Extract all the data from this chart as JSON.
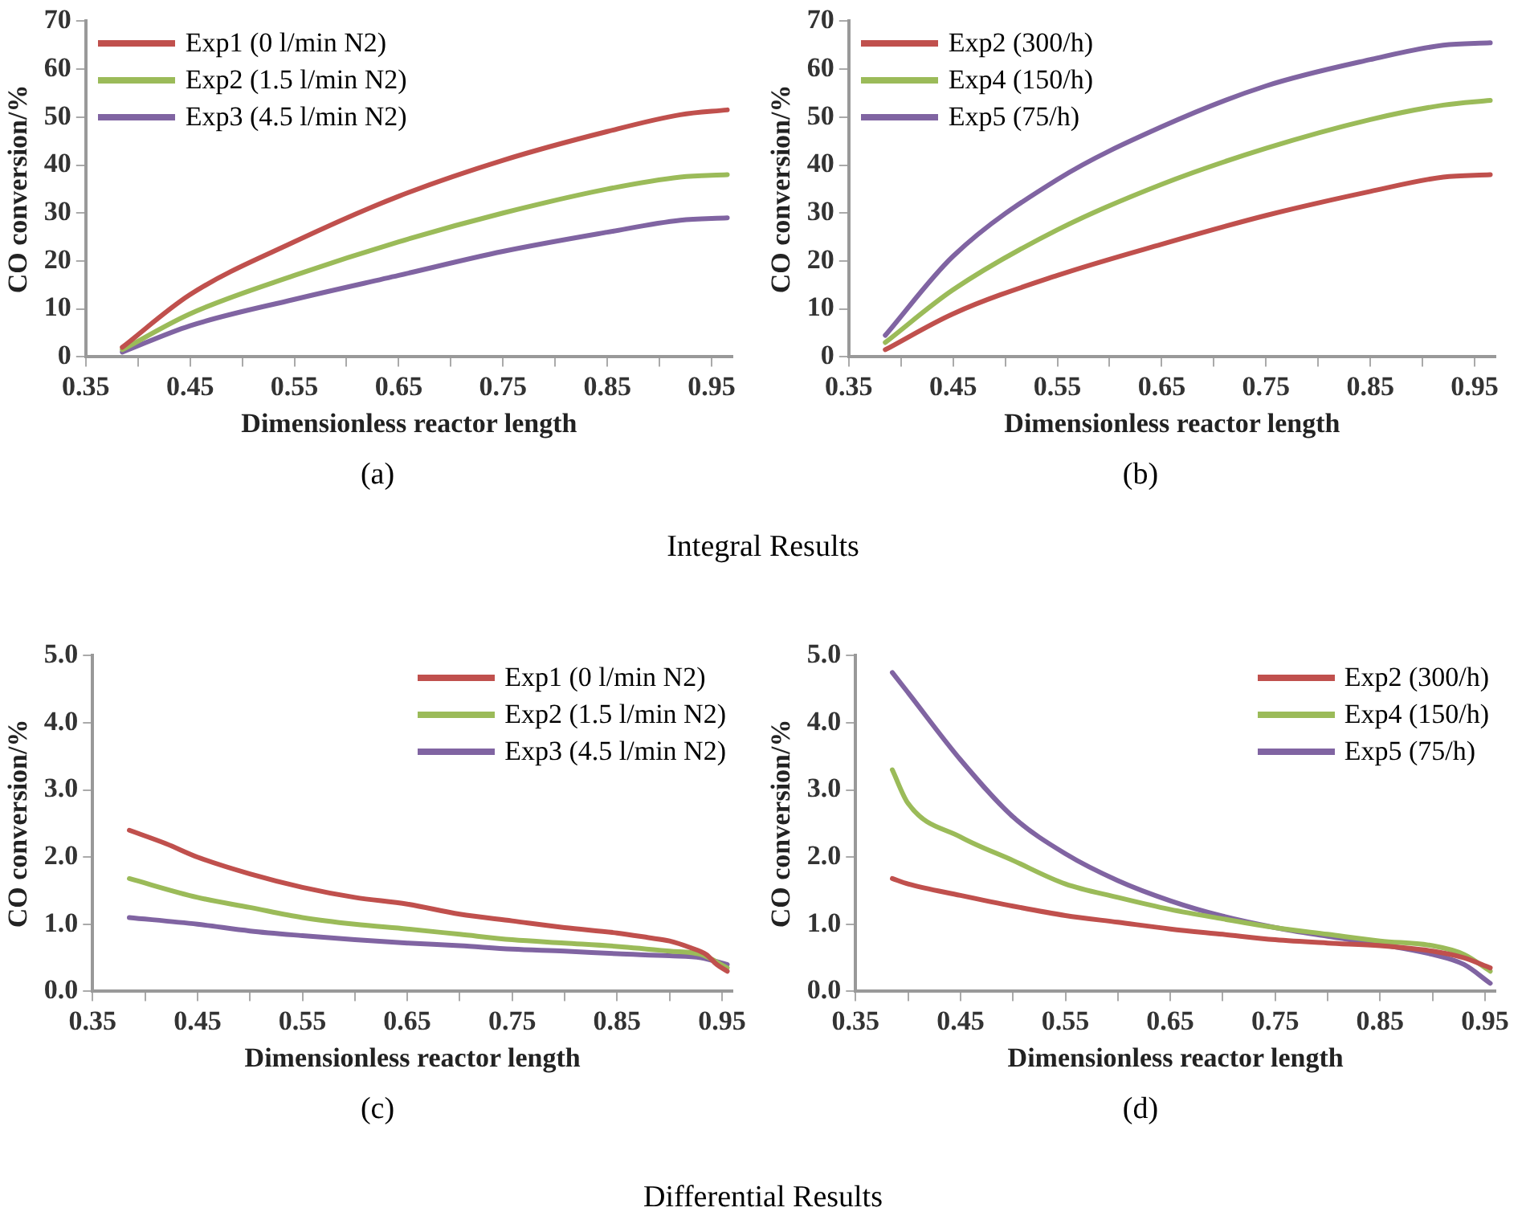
{
  "chart_data": [
    {
      "type": "line",
      "xlabel": "Dimensionless reactor length",
      "ylabel": "CO conversion/%",
      "annotations": [
        "(a)",
        "Integral Results"
      ],
      "legend": "top left",
      "grid": false,
      "marker": "none",
      "line_style": "solid",
      "xlim": [
        0.35,
        0.97
      ],
      "xticks": [
        {
          "value": 0.35,
          "label": "0.35"
        },
        {
          "value": 0.4,
          "label": null
        },
        {
          "value": 0.45,
          "label": "0.45"
        },
        {
          "value": 0.5,
          "label": null
        },
        {
          "value": 0.55,
          "label": "0.55"
        },
        {
          "value": 0.6,
          "label": null
        },
        {
          "value": 0.65,
          "label": "0.65"
        },
        {
          "value": 0.7,
          "label": null
        },
        {
          "value": 0.75,
          "label": "0.75"
        },
        {
          "value": 0.8,
          "label": null
        },
        {
          "value": 0.85,
          "label": "0.85"
        },
        {
          "value": 0.9,
          "label": null
        },
        {
          "value": 0.95,
          "label": "0.95"
        }
      ],
      "ylim": [
        0,
        70
      ],
      "yticks": [
        0,
        10,
        20,
        30,
        40,
        50,
        60,
        70
      ],
      "x": [
        0.385,
        0.45,
        0.55,
        0.65,
        0.75,
        0.85,
        0.92,
        0.965
      ],
      "series": [
        {
          "name": "Exp1 (0 l/min N2)",
          "color": "#c0504d",
          "values": [
            2,
            13,
            24,
            33.5,
            41,
            47,
            50.5,
            51.5
          ]
        },
        {
          "name": "Exp2 (1.5 l/min N2)",
          "color": "#9bbb59",
          "values": [
            1.5,
            9,
            17,
            24,
            30,
            35,
            37.5,
            38
          ]
        },
        {
          "name": "Exp3 (4.5 l/min N2)",
          "color": "#8064a2",
          "values": [
            1,
            6.5,
            12,
            17,
            22,
            26,
            28.5,
            29
          ]
        }
      ]
    },
    {
      "type": "line",
      "xlabel": "Dimensionless reactor length",
      "ylabel": "CO conversion/%",
      "annotations": [
        "(b)"
      ],
      "legend": "top left",
      "grid": false,
      "marker": "none",
      "line_style": "solid",
      "xlim": [
        0.35,
        0.97
      ],
      "xticks": [
        {
          "value": 0.35,
          "label": "0.35"
        },
        {
          "value": 0.4,
          "label": null
        },
        {
          "value": 0.45,
          "label": "0.45"
        },
        {
          "value": 0.5,
          "label": null
        },
        {
          "value": 0.55,
          "label": "0.55"
        },
        {
          "value": 0.6,
          "label": null
        },
        {
          "value": 0.65,
          "label": "0.65"
        },
        {
          "value": 0.7,
          "label": null
        },
        {
          "value": 0.75,
          "label": "0.75"
        },
        {
          "value": 0.8,
          "label": null
        },
        {
          "value": 0.85,
          "label": "0.85"
        },
        {
          "value": 0.9,
          "label": null
        },
        {
          "value": 0.95,
          "label": "0.95"
        }
      ],
      "ylim": [
        0,
        70
      ],
      "yticks": [
        0,
        10,
        20,
        30,
        40,
        50,
        60,
        70
      ],
      "x": [
        0.385,
        0.45,
        0.55,
        0.65,
        0.75,
        0.85,
        0.92,
        0.965
      ],
      "series": [
        {
          "name": "Exp2 (300/h)",
          "color": "#c0504d",
          "values": [
            1.5,
            9,
            17,
            23.5,
            29.5,
            34.5,
            37.5,
            38
          ]
        },
        {
          "name": "Exp4 (150/h)",
          "color": "#9bbb59",
          "values": [
            3,
            14,
            26.5,
            36,
            43.5,
            49.5,
            52.5,
            53.5
          ]
        },
        {
          "name": "Exp5 (75/h)",
          "color": "#8064a2",
          "values": [
            4.5,
            21,
            37,
            48,
            56.5,
            62,
            65,
            65.5
          ]
        }
      ]
    },
    {
      "type": "line",
      "xlabel": "Dimensionless reactor length",
      "ylabel": "CO conversion/%",
      "annotations": [
        "(c)",
        "Differential Results"
      ],
      "legend": "top right",
      "grid": false,
      "marker": "none",
      "line_style": "solid",
      "xlim": [
        0.35,
        0.96
      ],
      "xticks": [
        {
          "value": 0.35,
          "label": "0.35"
        },
        {
          "value": 0.4,
          "label": null
        },
        {
          "value": 0.45,
          "label": "0.45"
        },
        {
          "value": 0.5,
          "label": null
        },
        {
          "value": 0.55,
          "label": "0.55"
        },
        {
          "value": 0.6,
          "label": null
        },
        {
          "value": 0.65,
          "label": "0.65"
        },
        {
          "value": 0.7,
          "label": null
        },
        {
          "value": 0.75,
          "label": "0.75"
        },
        {
          "value": 0.8,
          "label": null
        },
        {
          "value": 0.85,
          "label": "0.85"
        },
        {
          "value": 0.9,
          "label": null
        },
        {
          "value": 0.95,
          "label": "0.95"
        }
      ],
      "ylim": [
        0,
        5
      ],
      "yticks": [
        {
          "value": 0,
          "label": "0.0"
        },
        {
          "value": 1,
          "label": "1.0"
        },
        {
          "value": 2,
          "label": "2.0"
        },
        {
          "value": 3,
          "label": "3.0"
        },
        {
          "value": 4,
          "label": "4.0"
        },
        {
          "value": 5,
          "label": "5.0"
        }
      ],
      "series": [
        {
          "name": "Exp1 (0 l/min N2)",
          "color": "#c0504d",
          "x": [
            0.385,
            0.42,
            0.45,
            0.5,
            0.55,
            0.6,
            0.65,
            0.7,
            0.75,
            0.8,
            0.85,
            0.88,
            0.9,
            0.92,
            0.935,
            0.945,
            0.955
          ],
          "values": [
            2.4,
            2.2,
            2.0,
            1.75,
            1.55,
            1.4,
            1.3,
            1.15,
            1.05,
            0.95,
            0.87,
            0.8,
            0.75,
            0.65,
            0.55,
            0.4,
            0.3
          ]
        },
        {
          "name": "Exp2 (1.5 l/min N2)",
          "color": "#9bbb59",
          "x": [
            0.385,
            0.45,
            0.5,
            0.55,
            0.6,
            0.65,
            0.7,
            0.75,
            0.8,
            0.85,
            0.9,
            0.93,
            0.955
          ],
          "values": [
            1.68,
            1.4,
            1.25,
            1.1,
            1.0,
            0.93,
            0.85,
            0.77,
            0.72,
            0.67,
            0.6,
            0.55,
            0.35
          ]
        },
        {
          "name": "Exp3 (4.5 l/min N2)",
          "color": "#8064a2",
          "x": [
            0.385,
            0.45,
            0.5,
            0.55,
            0.6,
            0.65,
            0.7,
            0.75,
            0.8,
            0.85,
            0.9,
            0.93,
            0.955
          ],
          "values": [
            1.1,
            1.0,
            0.9,
            0.83,
            0.77,
            0.72,
            0.68,
            0.63,
            0.6,
            0.56,
            0.53,
            0.5,
            0.4
          ]
        }
      ]
    },
    {
      "type": "line",
      "xlabel": "Dimensionless reactor length",
      "ylabel": "CO conversion/%",
      "annotations": [
        "(d)"
      ],
      "legend": "top right",
      "grid": false,
      "marker": "none",
      "line_style": "solid",
      "xlim": [
        0.35,
        0.96
      ],
      "xticks": [
        {
          "value": 0.35,
          "label": "0.35"
        },
        {
          "value": 0.4,
          "label": null
        },
        {
          "value": 0.45,
          "label": "0.45"
        },
        {
          "value": 0.5,
          "label": null
        },
        {
          "value": 0.55,
          "label": "0.55"
        },
        {
          "value": 0.6,
          "label": null
        },
        {
          "value": 0.65,
          "label": "0.65"
        },
        {
          "value": 0.7,
          "label": null
        },
        {
          "value": 0.75,
          "label": "0.75"
        },
        {
          "value": 0.8,
          "label": null
        },
        {
          "value": 0.85,
          "label": "0.85"
        },
        {
          "value": 0.9,
          "label": null
        },
        {
          "value": 0.95,
          "label": "0.95"
        }
      ],
      "ylim": [
        0,
        5
      ],
      "yticks": [
        {
          "value": 0,
          "label": "0.0"
        },
        {
          "value": 1,
          "label": "1.0"
        },
        {
          "value": 2,
          "label": "2.0"
        },
        {
          "value": 3,
          "label": "3.0"
        },
        {
          "value": 4,
          "label": "4.0"
        },
        {
          "value": 5,
          "label": "5.0"
        }
      ],
      "x": [
        0.385,
        0.4,
        0.45,
        0.5,
        0.55,
        0.6,
        0.65,
        0.7,
        0.75,
        0.8,
        0.85,
        0.9,
        0.93,
        0.955
      ],
      "series": [
        {
          "name": "Exp2 (300/h)",
          "color": "#c0504d",
          "values": [
            1.68,
            1.6,
            1.43,
            1.27,
            1.13,
            1.03,
            0.93,
            0.85,
            0.77,
            0.72,
            0.68,
            0.6,
            0.5,
            0.35
          ]
        },
        {
          "name": "Exp4 (150/h)",
          "color": "#9bbb59",
          "values": [
            3.3,
            2.8,
            2.3,
            1.95,
            1.6,
            1.4,
            1.22,
            1.08,
            0.95,
            0.85,
            0.75,
            0.68,
            0.55,
            0.3
          ]
        },
        {
          "name": "Exp5 (75/h)",
          "color": "#8064a2",
          "values": [
            4.75,
            4.45,
            3.45,
            2.6,
            2.05,
            1.65,
            1.35,
            1.12,
            0.95,
            0.82,
            0.7,
            0.55,
            0.4,
            0.12
          ]
        }
      ]
    }
  ]
}
